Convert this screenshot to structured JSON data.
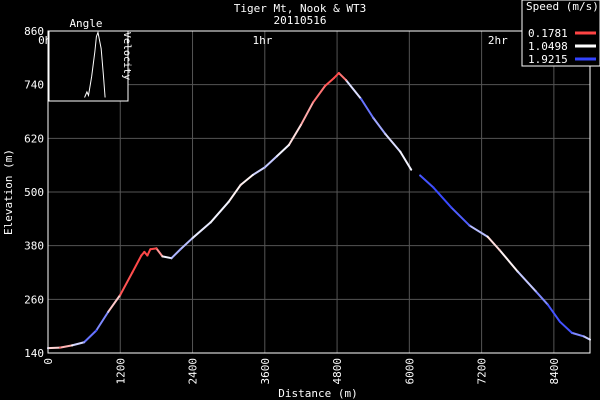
{
  "chart_data": {
    "type": "line",
    "title": "Tiger Mt, Nook & WT3",
    "subtitle": "20110516",
    "xlabel": "Distance (m)",
    "ylabel": "Elevation (m)",
    "xlim": [
      0,
      9000
    ],
    "ylim": [
      140,
      860
    ],
    "x_ticks": [
      0,
      1200,
      2400,
      3600,
      4800,
      6000,
      7200,
      8400
    ],
    "y_ticks": [
      140,
      260,
      380,
      500,
      620,
      740,
      860
    ],
    "time_ticks": [
      {
        "label": "0hr",
        "x": 0
      },
      {
        "label": "1hr",
        "x": 3560
      },
      {
        "label": "2hr",
        "x": 7470
      }
    ],
    "grid": true,
    "colors": {
      "slow": "#ff4444",
      "mid": "#ffffff",
      "fast": "#3344ff",
      "grid": "#555555",
      "axes": "#ffffff",
      "background": "#000000"
    },
    "legend": {
      "title": "Speed (m/s)",
      "placement": "top-right",
      "entries": [
        {
          "label": "0.1781",
          "color": "#ff4444"
        },
        {
          "label": "1.0498",
          "color": "#ffffff"
        },
        {
          "label": "1.9215",
          "color": "#3344ff"
        }
      ]
    },
    "series": [
      {
        "name": "Elevation",
        "points": [
          [
            0,
            151,
            1.3
          ],
          [
            200,
            152,
            0.4
          ],
          [
            400,
            157,
            1.0
          ],
          [
            600,
            164,
            1.5
          ],
          [
            800,
            190,
            1.9
          ],
          [
            1000,
            232,
            1.3
          ],
          [
            1200,
            270,
            0.3
          ],
          [
            1400,
            320,
            0.2
          ],
          [
            1550,
            358,
            0.2
          ],
          [
            1600,
            366,
            0.2
          ],
          [
            1650,
            358,
            0.2
          ],
          [
            1700,
            372,
            0.2
          ],
          [
            1800,
            374,
            0.2
          ],
          [
            1900,
            356,
            0.9
          ],
          [
            2050,
            352,
            1.3
          ],
          [
            2200,
            372,
            1.5
          ],
          [
            2400,
            397,
            1.2
          ],
          [
            2700,
            432,
            1.1
          ],
          [
            3000,
            478,
            1.1
          ],
          [
            3200,
            516,
            0.9
          ],
          [
            3400,
            538,
            1.1
          ],
          [
            3600,
            555,
            1.4
          ],
          [
            3800,
            580,
            1.2
          ],
          [
            4000,
            605,
            1.0
          ],
          [
            4200,
            650,
            0.8
          ],
          [
            4400,
            700,
            0.5
          ],
          [
            4600,
            737,
            0.3
          ],
          [
            4750,
            755,
            0.2
          ],
          [
            4830,
            766,
            0.2
          ],
          [
            4950,
            750,
            0.6
          ],
          [
            5200,
            708,
            1.8
          ],
          [
            5400,
            666,
            1.6
          ],
          [
            5600,
            630,
            1.3
          ],
          [
            5850,
            590,
            1.1
          ],
          [
            6030,
            550,
            1.1
          ],
          null,
          [
            6180,
            537,
            1.8
          ],
          [
            6400,
            510,
            1.9
          ],
          [
            6700,
            465,
            1.9
          ],
          [
            7000,
            425,
            1.7
          ],
          [
            7300,
            400,
            1.0
          ],
          [
            7500,
            370,
            0.8
          ],
          [
            7800,
            322,
            1.2
          ],
          [
            8100,
            278,
            1.4
          ],
          [
            8300,
            248,
            1.8
          ],
          [
            8500,
            210,
            1.9
          ],
          [
            8700,
            185,
            1.8
          ],
          [
            8900,
            177,
            1.4
          ],
          [
            9000,
            170,
            1.2
          ]
        ]
      }
    ],
    "inset": {
      "title": "Angle",
      "ylabel": "Velocity",
      "points": [
        [
          0.45,
          0.05
        ],
        [
          0.48,
          0.13
        ],
        [
          0.5,
          0.08
        ],
        [
          0.54,
          0.35
        ],
        [
          0.58,
          0.7
        ],
        [
          0.6,
          0.92
        ],
        [
          0.62,
          0.98
        ],
        [
          0.66,
          0.75
        ],
        [
          0.69,
          0.35
        ],
        [
          0.71,
          0.05
        ]
      ]
    }
  }
}
